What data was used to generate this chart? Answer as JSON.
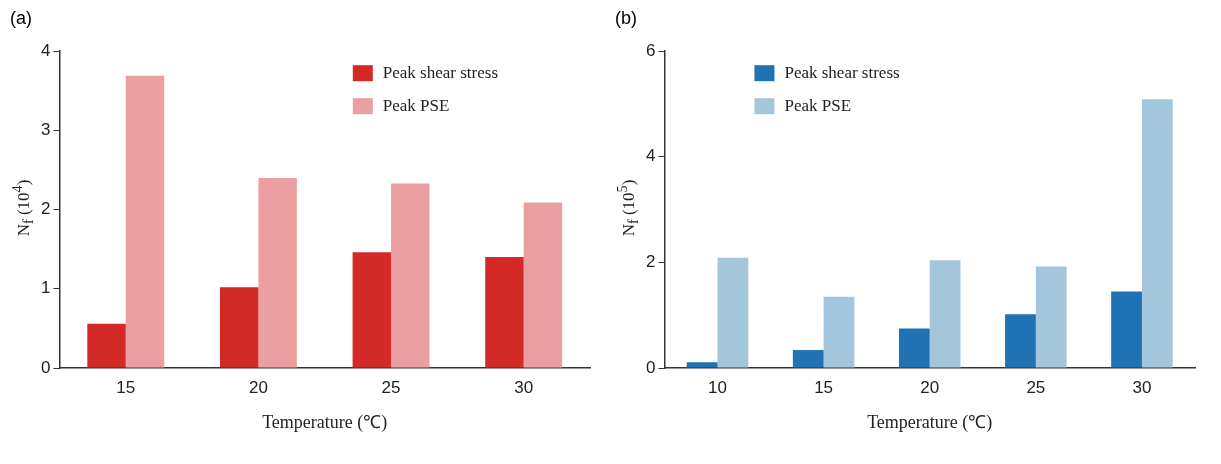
{
  "chart_data": [
    {
      "type": "bar",
      "title": "(a)",
      "xlabel": "Temperature (℃)",
      "ylabel": "N$_{f}$ (10$^{4}$)",
      "categories": [
        "15",
        "20",
        "25",
        "30"
      ],
      "series": [
        {
          "name": "Peak shear stress",
          "color": "#d42a27",
          "values": [
            0.56,
            1.02,
            1.46,
            1.4
          ]
        },
        {
          "name": "Peak PSE",
          "color": "#ec9fa1",
          "values": [
            3.69,
            2.4,
            2.33,
            2.09
          ]
        }
      ],
      "ylim": [
        0,
        4
      ],
      "yticks": [
        0,
        1,
        2,
        3,
        4
      ],
      "grid": false,
      "legend": "top right"
    },
    {
      "type": "bar",
      "title": "(b)",
      "xlabel": "Temperature (℃)",
      "ylabel": "N$_{f}$ (10$^{5}$)",
      "categories": [
        "10",
        "15",
        "20",
        "25",
        "30"
      ],
      "series": [
        {
          "name": "Peak shear stress",
          "color": "#1f72b4",
          "values": [
            0.11,
            0.34,
            0.75,
            1.02,
            1.45
          ]
        },
        {
          "name": "Peak PSE",
          "color": "#a3c6dd",
          "values": [
            2.09,
            1.35,
            2.04,
            1.92,
            5.09
          ]
        }
      ],
      "ylim": [
        0,
        6
      ],
      "yticks": [
        0,
        2,
        4,
        6
      ],
      "grid": false,
      "legend": "top left"
    }
  ]
}
